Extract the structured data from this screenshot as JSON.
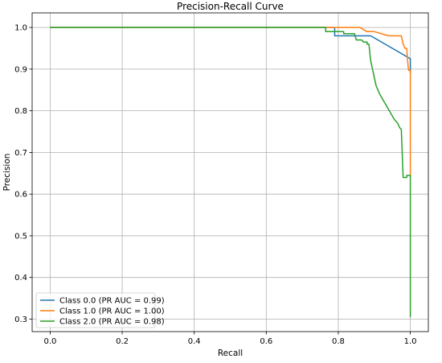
{
  "chart_data": {
    "type": "line",
    "title": "Precision-Recall Curve",
    "xlabel": "Recall",
    "ylabel": "Precision",
    "xlim": [
      -0.05,
      1.05
    ],
    "ylim": [
      0.27,
      1.035
    ],
    "xticks": [
      0.0,
      0.2,
      0.4,
      0.6,
      0.8,
      1.0
    ],
    "xtick_labels": [
      "0.0",
      "0.2",
      "0.4",
      "0.6",
      "0.8",
      "1.0"
    ],
    "yticks": [
      0.3,
      0.4,
      0.5,
      0.6,
      0.7,
      0.8,
      0.9,
      1.0
    ],
    "ytick_labels": [
      "0.3",
      "0.4",
      "0.5",
      "0.6",
      "0.7",
      "0.8",
      "0.9",
      "1.0"
    ],
    "grid": true,
    "legend_position": "lower-left",
    "series": [
      {
        "name": "Class 0.0 (PR AUC = 0.99)",
        "color": "#1f77b4",
        "points": [
          [
            0.0,
            1.0
          ],
          [
            0.79,
            1.0
          ],
          [
            0.79,
            0.98
          ],
          [
            0.89,
            0.98
          ],
          [
            1.0,
            0.925
          ],
          [
            1.0,
            0.89
          ]
        ]
      },
      {
        "name": "Class 1.0 (PR AUC = 1.00)",
        "color": "#ff7f0e",
        "points": [
          [
            0.0,
            1.0
          ],
          [
            0.86,
            1.0
          ],
          [
            0.87,
            0.995
          ],
          [
            0.88,
            0.99
          ],
          [
            0.9,
            0.99
          ],
          [
            0.94,
            0.98
          ],
          [
            0.975,
            0.98
          ],
          [
            0.98,
            0.96
          ],
          [
            0.985,
            0.95
          ],
          [
            0.99,
            0.95
          ],
          [
            0.992,
            0.925
          ],
          [
            0.995,
            0.897
          ],
          [
            1.0,
            0.897
          ],
          [
            1.0,
            0.64
          ]
        ]
      },
      {
        "name": "Class 2.0 (PR AUC = 0.98)",
        "color": "#2ca02c",
        "points": [
          [
            0.0,
            1.0
          ],
          [
            0.765,
            1.0
          ],
          [
            0.765,
            0.99
          ],
          [
            0.815,
            0.99
          ],
          [
            0.815,
            0.985
          ],
          [
            0.845,
            0.985
          ],
          [
            0.85,
            0.97
          ],
          [
            0.865,
            0.97
          ],
          [
            0.87,
            0.965
          ],
          [
            0.88,
            0.965
          ],
          [
            0.88,
            0.96
          ],
          [
            0.885,
            0.96
          ],
          [
            0.89,
            0.92
          ],
          [
            0.905,
            0.86
          ],
          [
            0.915,
            0.84
          ],
          [
            0.955,
            0.78
          ],
          [
            0.965,
            0.77
          ],
          [
            0.97,
            0.76
          ],
          [
            0.975,
            0.755
          ],
          [
            0.98,
            0.64
          ],
          [
            0.99,
            0.64
          ],
          [
            0.99,
            0.645
          ],
          [
            0.995,
            0.645
          ],
          [
            1.0,
            0.645
          ],
          [
            1.0,
            0.305
          ]
        ]
      }
    ]
  }
}
